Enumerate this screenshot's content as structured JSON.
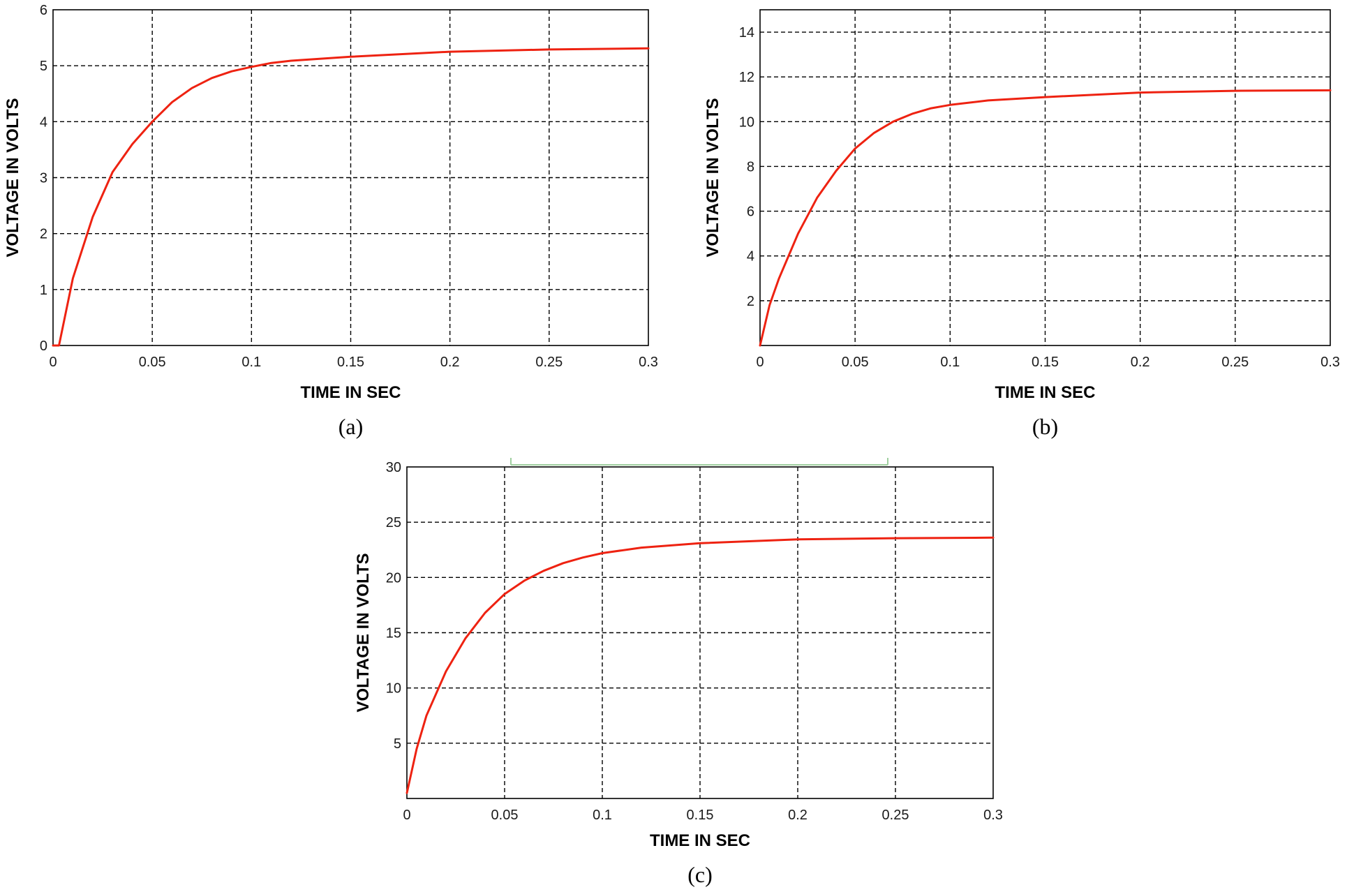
{
  "colors": {
    "series": "#ee2211",
    "grid": "#000000",
    "bracket": "#9fcf9f"
  },
  "chart_data": [
    {
      "id": "a",
      "type": "line",
      "caption": "(a)",
      "xlabel": "TIME IN SEC",
      "ylabel": "VOLTAGE IN VOLTS",
      "xlim": [
        0,
        0.3
      ],
      "ylim": [
        0,
        6
      ],
      "grid": true,
      "x_ticks": [
        "0",
        "0.05",
        "0.1",
        "0.15",
        "0.2",
        "0.25",
        "0.3"
      ],
      "y_ticks": [
        "0",
        "1",
        "2",
        "3",
        "4",
        "5",
        "6"
      ],
      "series": [
        {
          "x": [
            0,
            0.003,
            0.01,
            0.02,
            0.03,
            0.04,
            0.05,
            0.06,
            0.07,
            0.08,
            0.09,
            0.1,
            0.11,
            0.12,
            0.15,
            0.2,
            0.25,
            0.3
          ],
          "values": [
            0,
            0,
            1.2,
            2.3,
            3.1,
            3.6,
            4.0,
            4.35,
            4.6,
            4.78,
            4.9,
            4.98,
            5.05,
            5.09,
            5.16,
            5.25,
            5.29,
            5.31
          ]
        }
      ]
    },
    {
      "id": "b",
      "type": "line",
      "caption": "(b)",
      "xlabel": "TIME IN SEC",
      "ylabel": "VOLTAGE IN VOLTS",
      "xlim": [
        0,
        0.3
      ],
      "ylim": [
        0,
        15
      ],
      "grid": true,
      "x_ticks": [
        "0",
        "0.05",
        "0.1",
        "0.15",
        "0.2",
        "0.25",
        "0.3"
      ],
      "y_ticks": [
        "2",
        "4",
        "6",
        "8",
        "10",
        "12",
        "14"
      ],
      "series": [
        {
          "x": [
            0,
            0.005,
            0.01,
            0.02,
            0.03,
            0.04,
            0.05,
            0.06,
            0.07,
            0.08,
            0.09,
            0.1,
            0.12,
            0.15,
            0.2,
            0.25,
            0.3
          ],
          "values": [
            0,
            1.8,
            3.0,
            5.0,
            6.6,
            7.8,
            8.8,
            9.5,
            10.0,
            10.35,
            10.6,
            10.75,
            10.95,
            11.1,
            11.3,
            11.38,
            11.4
          ]
        }
      ]
    },
    {
      "id": "c",
      "type": "line",
      "caption": "(c)",
      "xlabel": "TIME IN SEC",
      "ylabel": "VOLTAGE IN VOLTS",
      "xlim": [
        0,
        0.3
      ],
      "ylim": [
        0,
        30
      ],
      "grid": true,
      "x_ticks": [
        "0",
        "0.05",
        "0.1",
        "0.15",
        "0.2",
        "0.25",
        "0.3"
      ],
      "y_ticks": [
        "5",
        "10",
        "15",
        "20",
        "25",
        "30"
      ],
      "series": [
        {
          "x": [
            0,
            0.005,
            0.01,
            0.02,
            0.03,
            0.04,
            0.05,
            0.06,
            0.07,
            0.08,
            0.09,
            0.1,
            0.12,
            0.15,
            0.2,
            0.25,
            0.3
          ],
          "values": [
            0.5,
            4.5,
            7.5,
            11.5,
            14.5,
            16.8,
            18.5,
            19.7,
            20.6,
            21.3,
            21.8,
            22.2,
            22.7,
            23.1,
            23.45,
            23.55,
            23.6
          ]
        }
      ]
    }
  ]
}
